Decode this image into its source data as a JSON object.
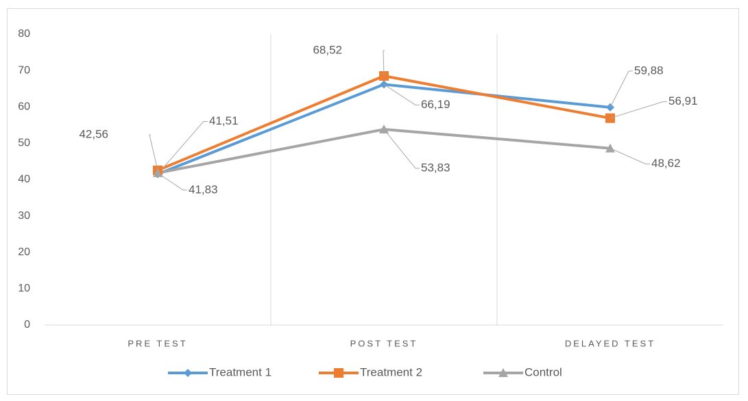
{
  "chart_data": {
    "type": "line",
    "categories": [
      "PRE TEST",
      "POST TEST",
      "DELAYED TEST"
    ],
    "series": [
      {
        "name": "Treatment 1",
        "color": "#5b9bd5",
        "marker": "diamond",
        "values": [
          41.51,
          66.19,
          59.88
        ],
        "value_labels": [
          "41,51",
          "66,19",
          "59,88"
        ]
      },
      {
        "name": "Treatment 2",
        "color": "#ed7d31",
        "marker": "square",
        "values": [
          42.56,
          68.52,
          56.91
        ],
        "value_labels": [
          "42,56",
          "68,52",
          "56,91"
        ]
      },
      {
        "name": "Control",
        "color": "#a5a5a5",
        "marker": "triangle",
        "values": [
          41.83,
          53.83,
          48.62
        ],
        "value_labels": [
          "41,83",
          "53,83",
          "48,62"
        ]
      }
    ],
    "ylim": [
      0,
      80
    ],
    "yticks": [
      0,
      10,
      20,
      30,
      40,
      50,
      60,
      70,
      80
    ],
    "legend": "bottom"
  }
}
